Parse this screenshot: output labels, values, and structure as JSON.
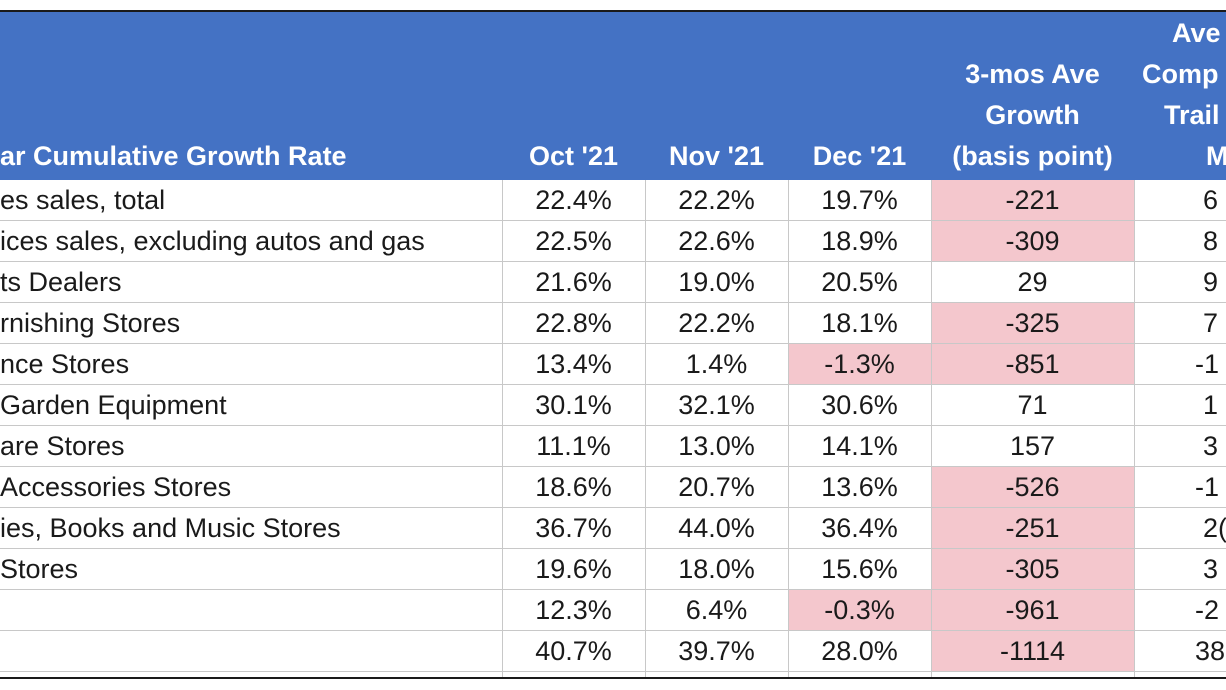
{
  "header": {
    "label_col": "ar Cumulative Growth Rate",
    "months": [
      "Oct '21",
      "Nov '21",
      "Dec '21"
    ],
    "growth_lines": [
      "3-mos Ave",
      "Growth",
      "(basis point)"
    ],
    "last_lines": [
      "Ave",
      "Comp",
      "Trail",
      "M"
    ]
  },
  "rows": [
    {
      "label": "es sales, total",
      "oct": "22.4%",
      "nov": "22.2%",
      "dec": "19.7%",
      "growth": "-221",
      "last": "6"
    },
    {
      "label": "ices sales, excluding autos and gas",
      "oct": "22.5%",
      "nov": "22.6%",
      "dec": "18.9%",
      "growth": "-309",
      "last": "8"
    },
    {
      "label": "ts Dealers",
      "oct": "21.6%",
      "nov": "19.0%",
      "dec": "20.5%",
      "growth": "29",
      "last": "9"
    },
    {
      "label": "rnishing Stores",
      "oct": "22.8%",
      "nov": "22.2%",
      "dec": "18.1%",
      "growth": "-325",
      "last": "7"
    },
    {
      "label": "nce Stores",
      "oct": "13.4%",
      "nov": "1.4%",
      "dec": "-1.3%",
      "growth": "-851",
      "last": "-1"
    },
    {
      "label": "Garden Equipment",
      "oct": "30.1%",
      "nov": "32.1%",
      "dec": "30.6%",
      "growth": "71",
      "last": "1"
    },
    {
      "label": "are Stores",
      "oct": "11.1%",
      "nov": "13.0%",
      "dec": "14.1%",
      "growth": "157",
      "last": "3"
    },
    {
      "label": "Accessories Stores",
      "oct": "18.6%",
      "nov": "20.7%",
      "dec": "13.6%",
      "growth": "-526",
      "last": "-1"
    },
    {
      "label": "ies, Books and Music Stores",
      "oct": "36.7%",
      "nov": "44.0%",
      "dec": "36.4%",
      "growth": "-251",
      "last": "2("
    },
    {
      "label": "Stores",
      "oct": "19.6%",
      "nov": "18.0%",
      "dec": "15.6%",
      "growth": "-305",
      "last": "3"
    },
    {
      "label": "",
      "oct": "12.3%",
      "nov": "6.4%",
      "dec": "-0.3%",
      "growth": "-961",
      "last": "-2"
    },
    {
      "label": "",
      "oct": "40.7%",
      "nov": "39.7%",
      "dec": "28.0%",
      "growth": "-1114",
      "last": "38"
    }
  ],
  "highlight_color": "#f4c7cd",
  "header_color": "#4472c4"
}
